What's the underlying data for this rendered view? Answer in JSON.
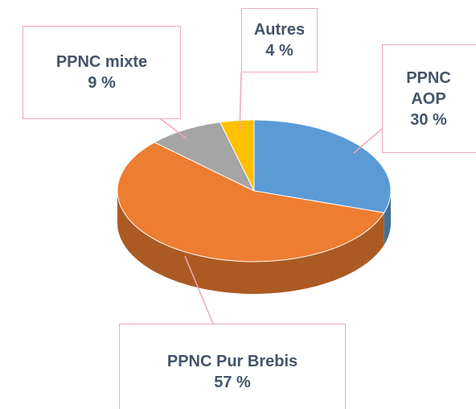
{
  "chart_data": {
    "type": "pie3d",
    "categories": [
      "PPNC AOP",
      "PPNC Pur Brebis",
      "PPNC mixte",
      "Autres"
    ],
    "values": [
      30,
      57,
      9,
      4
    ],
    "value_labels": [
      "30 %",
      "57 %",
      "9 %",
      "4 %"
    ],
    "colors": [
      "#5b9bd5",
      "#ed7d31",
      "#a5a5a5",
      "#ffc000"
    ]
  }
}
